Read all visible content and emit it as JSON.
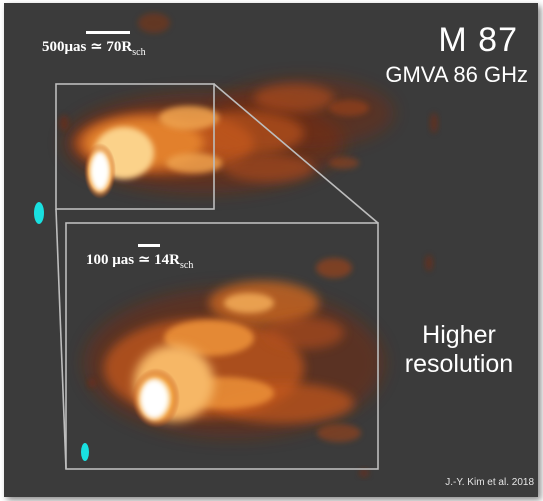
{
  "title": "M 87",
  "subtitle": "GMVA 86 GHz",
  "annotation": "Higher resolution",
  "credit": "J.-Y. Kim et al. 2018",
  "scale_bars": [
    {
      "value": "500",
      "unit_text": "μas",
      "equiv": "≃ 70R",
      "sub": "sch"
    },
    {
      "value": "100",
      "unit_text": "μas",
      "equiv": "≃ 14R",
      "sub": "sch"
    }
  ],
  "colors": {
    "background": "#3b3b3b",
    "jet_low": "#7a2a10",
    "jet_mid": "#e0782a",
    "jet_high": "#fff6d8",
    "beam": "#19e0e0",
    "frame": "#bdbdbd",
    "text": "#ffffff"
  }
}
